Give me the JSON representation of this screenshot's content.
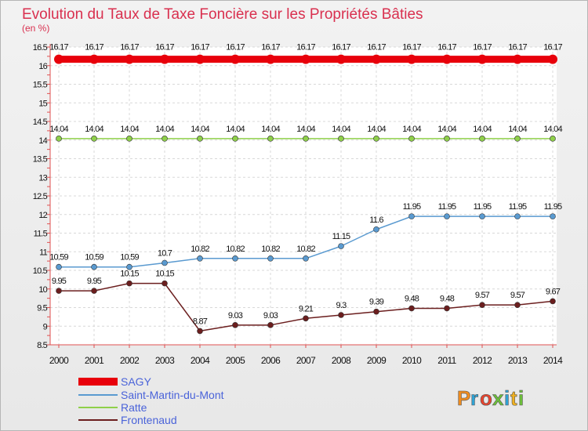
{
  "chart_data": {
    "type": "line",
    "title": "Evolution du Taux de Taxe Foncière sur les Propriétés Bâties",
    "subtitle": "(en %)",
    "x": [
      "2000",
      "2001",
      "2002",
      "2003",
      "2004",
      "2005",
      "2006",
      "2007",
      "2008",
      "2009",
      "2010",
      "2011",
      "2012",
      "2013",
      "2014"
    ],
    "ylim": [
      8.5,
      16.5
    ],
    "yticks": [
      "8.5",
      "9",
      "9.5",
      "10",
      "10.5",
      "11",
      "11.5",
      "12",
      "12.5",
      "13",
      "13.5",
      "14",
      "14.5",
      "15",
      "15.5",
      "16",
      "16.5"
    ],
    "grid": true,
    "legend_position": "bottom-left",
    "series": [
      {
        "name": "SAGY",
        "color": "#e8000b",
        "values": [
          16.17,
          16.17,
          16.17,
          16.17,
          16.17,
          16.17,
          16.17,
          16.17,
          16.17,
          16.17,
          16.17,
          16.17,
          16.17,
          16.17,
          16.17
        ],
        "labels": [
          "16.17",
          "16.17",
          "16.17",
          "16.17",
          "16.17",
          "16.17",
          "16.17",
          "16.17",
          "16.17",
          "16.17",
          "16.17",
          "16.17",
          "16.17",
          "16.17",
          "16.17"
        ]
      },
      {
        "name": "Saint-Martin-du-Mont",
        "color": "#5a9ad0",
        "values": [
          10.59,
          10.59,
          10.59,
          10.7,
          10.82,
          10.82,
          10.82,
          10.82,
          11.15,
          11.6,
          11.95,
          11.95,
          11.95,
          11.95,
          11.95
        ],
        "labels": [
          "10.59",
          "10.59",
          "10.59",
          "10.7",
          "10.82",
          "10.82",
          "10.82",
          "10.82",
          "11.15",
          "11.6",
          "11.95",
          "11.95",
          "11.95",
          "11.95",
          "11.95"
        ]
      },
      {
        "name": "Ratte",
        "color": "#8fd04a",
        "values": [
          14.04,
          14.04,
          14.04,
          14.04,
          14.04,
          14.04,
          14.04,
          14.04,
          14.04,
          14.04,
          14.04,
          14.04,
          14.04,
          14.04,
          14.04
        ],
        "labels": [
          "14.04",
          "14.04",
          "14.04",
          "14.04",
          "14.04",
          "14.04",
          "14.04",
          "14.04",
          "14.04",
          "14.04",
          "14.04",
          "14.04",
          "14.04",
          "14.04",
          "14.04"
        ]
      },
      {
        "name": "Frontenaud",
        "color": "#6b1e1e",
        "values": [
          9.95,
          9.95,
          10.15,
          10.15,
          8.87,
          9.03,
          9.03,
          9.21,
          9.3,
          9.39,
          9.48,
          9.48,
          9.57,
          9.57,
          9.67
        ],
        "labels": [
          "9.95",
          "9.95",
          "10.15",
          "10.15",
          "8.87",
          "9.03",
          "9.03",
          "9.21",
          "9.3",
          "9.39",
          "9.48",
          "9.48",
          "9.57",
          "9.57",
          "9.67"
        ]
      }
    ]
  },
  "logo": {
    "text": "Proxiti"
  }
}
